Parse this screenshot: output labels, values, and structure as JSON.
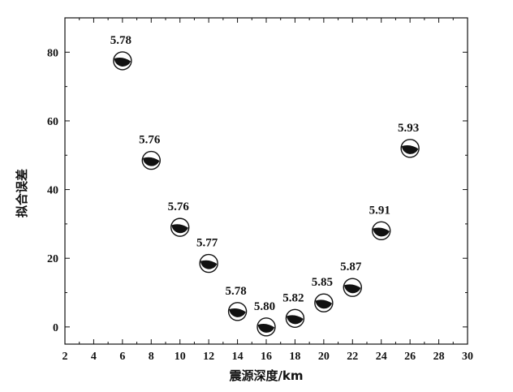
{
  "chart_data": {
    "type": "scatter",
    "title": "",
    "xlabel": "震源深度/km",
    "ylabel": "拟合误差",
    "xlim": [
      2,
      30
    ],
    "ylim": [
      -5,
      90
    ],
    "xticks": [
      2,
      4,
      6,
      8,
      10,
      12,
      14,
      16,
      18,
      20,
      22,
      24,
      26,
      28,
      30
    ],
    "yticks": [
      0,
      20,
      40,
      60,
      80
    ],
    "grid": false,
    "marker": "focal-mechanism-beachball",
    "points": [
      {
        "x": 6,
        "y": 77.5,
        "label": "5.78"
      },
      {
        "x": 8,
        "y": 48.5,
        "label": "5.76"
      },
      {
        "x": 10,
        "y": 29,
        "label": "5.76"
      },
      {
        "x": 12,
        "y": 18.5,
        "label": "5.77"
      },
      {
        "x": 14,
        "y": 4.5,
        "label": "5.78"
      },
      {
        "x": 16,
        "y": 0,
        "label": "5.80"
      },
      {
        "x": 18,
        "y": 2.5,
        "label": "5.82"
      },
      {
        "x": 20,
        "y": 7,
        "label": "5.85"
      },
      {
        "x": 22,
        "y": 11.5,
        "label": "5.87"
      },
      {
        "x": 24,
        "y": 28,
        "label": "5.91"
      },
      {
        "x": 26,
        "y": 52,
        "label": "5.93"
      }
    ]
  }
}
